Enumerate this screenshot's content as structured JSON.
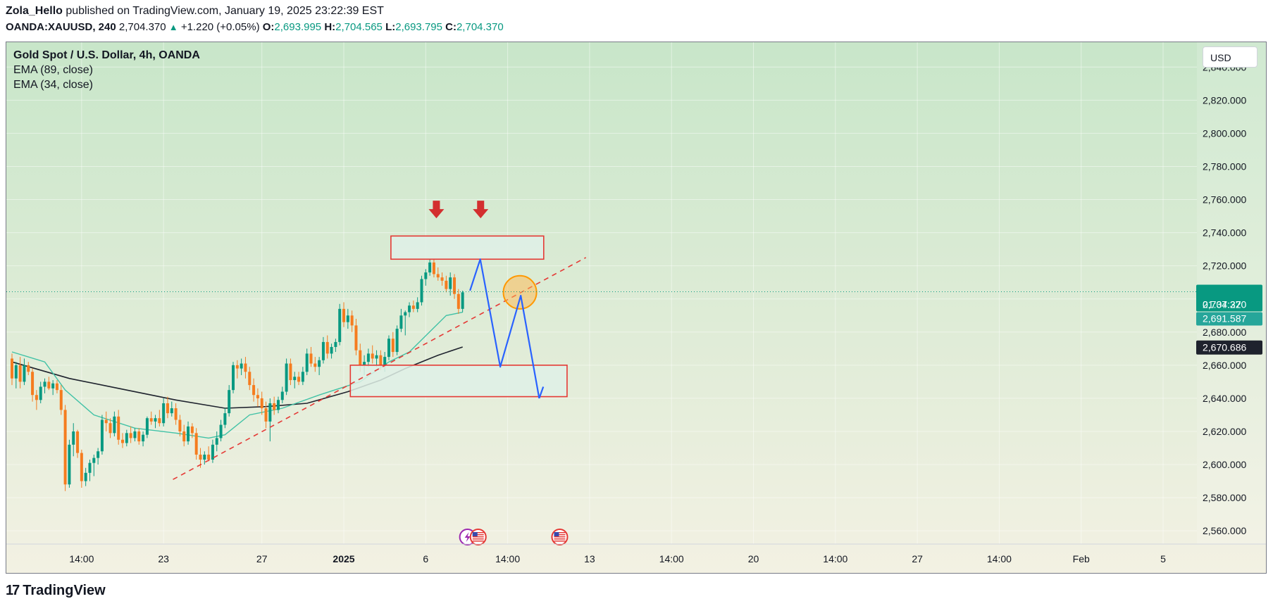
{
  "header": {
    "author": "Zola_Hello",
    "published_text": "published on TradingView.com, January 19, 2025 23:22:39 EST",
    "symbol": "OANDA:XAUUSD, 240",
    "last": "2,704.370",
    "change": "+1.220 (+0.05%)",
    "open_label": "O:",
    "open": "2,693.995",
    "high_label": "H:",
    "high": "2,704.565",
    "low_label": "L:",
    "low": "2,693.795",
    "close_label": "C:",
    "close": "2,704.370"
  },
  "legend": {
    "title": "Gold Spot / U.S. Dollar, 4h, OANDA",
    "ema1": "EMA (89, close)",
    "ema2": "EMA (34, close)"
  },
  "currency": "USD",
  "footer": {
    "logo_mark": "17",
    "logo_text": "TradingView"
  },
  "colors": {
    "up": "#089981",
    "down": "#f57c1f",
    "ema34": "#41c2a6",
    "ema89": "#1e222d",
    "trendline": "#e53935",
    "zone_border": "#e53935",
    "zone_fill": "#dff0e6",
    "projection": "#2962ff",
    "price_badge": "#089981",
    "ema_badge": "#1e222d",
    "marker_arrow": "#d32f2f",
    "circle": "#ff9800"
  },
  "chart_data": {
    "type": "candlestick",
    "symbol": "OANDA:XAUUSD",
    "timeframe": "4h",
    "yaxis": {
      "ticks": [
        2560,
        2580,
        2600,
        2620,
        2640,
        2660,
        2680,
        2700,
        2720,
        2740,
        2760,
        2780,
        2800,
        2820,
        2840
      ],
      "tick_labels": [
        "2,560.000",
        "2,580.000",
        "2,600.000",
        "2,620.000",
        "2,640.000",
        "2,660.000",
        "2,680.000",
        "2,700.000",
        "2,720.000",
        "2,740.000",
        "2,760.000",
        "2,780.000",
        "2,800.000",
        "2,820.000",
        "2,840.000"
      ],
      "range": [
        2552,
        2855
      ]
    },
    "xaxis": {
      "labels": [
        {
          "bar": 17,
          "text": "14:00"
        },
        {
          "bar": 37,
          "text": "23"
        },
        {
          "bar": 61,
          "text": "27"
        },
        {
          "bar": 81,
          "text": "2025",
          "bold": true
        },
        {
          "bar": 101,
          "text": "6"
        },
        {
          "bar": 121,
          "text": "14:00"
        },
        {
          "bar": 141,
          "text": "13"
        },
        {
          "bar": 161,
          "text": "14:00"
        },
        {
          "bar": 181,
          "text": "20"
        },
        {
          "bar": 201,
          "text": "14:00"
        },
        {
          "bar": 221,
          "text": "27"
        },
        {
          "bar": 241,
          "text": "14:00"
        },
        {
          "bar": 261,
          "text": "Feb"
        },
        {
          "bar": 281,
          "text": "5"
        }
      ]
    },
    "price_badges": [
      {
        "value": 2704.37,
        "text": "2,704.370",
        "kind": "last"
      },
      {
        "text": "01:37:22",
        "kind": "countdown"
      },
      {
        "value": 2691.587,
        "text": "2,691.587",
        "kind": "ema34"
      },
      {
        "value": 2670.686,
        "text": "2,670.686",
        "kind": "ema89"
      }
    ],
    "candles": [
      {
        "o": 2664,
        "h": 2667,
        "l": 2648,
        "c": 2652
      },
      {
        "o": 2652,
        "h": 2662,
        "l": 2646,
        "c": 2660
      },
      {
        "o": 2660,
        "h": 2665,
        "l": 2646,
        "c": 2650
      },
      {
        "o": 2650,
        "h": 2664,
        "l": 2648,
        "c": 2660
      },
      {
        "o": 2660,
        "h": 2662,
        "l": 2654,
        "c": 2656
      },
      {
        "o": 2656,
        "h": 2658,
        "l": 2638,
        "c": 2642
      },
      {
        "o": 2642,
        "h": 2645,
        "l": 2633,
        "c": 2639
      },
      {
        "o": 2639,
        "h": 2650,
        "l": 2637,
        "c": 2647
      },
      {
        "o": 2647,
        "h": 2652,
        "l": 2643,
        "c": 2650
      },
      {
        "o": 2650,
        "h": 2653,
        "l": 2645,
        "c": 2646
      },
      {
        "o": 2646,
        "h": 2651,
        "l": 2642,
        "c": 2649
      },
      {
        "o": 2649,
        "h": 2651,
        "l": 2643,
        "c": 2645
      },
      {
        "o": 2645,
        "h": 2648,
        "l": 2630,
        "c": 2633
      },
      {
        "o": 2633,
        "h": 2636,
        "l": 2584,
        "c": 2588
      },
      {
        "o": 2588,
        "h": 2615,
        "l": 2586,
        "c": 2612
      },
      {
        "o": 2612,
        "h": 2625,
        "l": 2605,
        "c": 2620
      },
      {
        "o": 2620,
        "h": 2621,
        "l": 2604,
        "c": 2607
      },
      {
        "o": 2607,
        "h": 2609,
        "l": 2586,
        "c": 2590
      },
      {
        "o": 2590,
        "h": 2598,
        "l": 2587,
        "c": 2595
      },
      {
        "o": 2595,
        "h": 2603,
        "l": 2590,
        "c": 2601
      },
      {
        "o": 2601,
        "h": 2606,
        "l": 2593,
        "c": 2604
      },
      {
        "o": 2604,
        "h": 2610,
        "l": 2600,
        "c": 2608
      },
      {
        "o": 2608,
        "h": 2630,
        "l": 2606,
        "c": 2627
      },
      {
        "o": 2627,
        "h": 2632,
        "l": 2620,
        "c": 2625
      },
      {
        "o": 2625,
        "h": 2628,
        "l": 2616,
        "c": 2619
      },
      {
        "o": 2619,
        "h": 2632,
        "l": 2617,
        "c": 2629
      },
      {
        "o": 2629,
        "h": 2633,
        "l": 2612,
        "c": 2615
      },
      {
        "o": 2615,
        "h": 2619,
        "l": 2610,
        "c": 2613
      },
      {
        "o": 2613,
        "h": 2621,
        "l": 2611,
        "c": 2619
      },
      {
        "o": 2619,
        "h": 2623,
        "l": 2613,
        "c": 2616
      },
      {
        "o": 2616,
        "h": 2622,
        "l": 2614,
        "c": 2620
      },
      {
        "o": 2620,
        "h": 2622,
        "l": 2612,
        "c": 2614
      },
      {
        "o": 2614,
        "h": 2620,
        "l": 2611,
        "c": 2618
      },
      {
        "o": 2618,
        "h": 2629,
        "l": 2616,
        "c": 2628
      },
      {
        "o": 2628,
        "h": 2632,
        "l": 2624,
        "c": 2626
      },
      {
        "o": 2626,
        "h": 2630,
        "l": 2622,
        "c": 2628
      },
      {
        "o": 2628,
        "h": 2633,
        "l": 2623,
        "c": 2625
      },
      {
        "o": 2625,
        "h": 2640,
        "l": 2623,
        "c": 2637
      },
      {
        "o": 2637,
        "h": 2641,
        "l": 2628,
        "c": 2631
      },
      {
        "o": 2631,
        "h": 2638,
        "l": 2629,
        "c": 2634
      },
      {
        "o": 2634,
        "h": 2637,
        "l": 2624,
        "c": 2627
      },
      {
        "o": 2627,
        "h": 2630,
        "l": 2617,
        "c": 2620
      },
      {
        "o": 2620,
        "h": 2624,
        "l": 2611,
        "c": 2614
      },
      {
        "o": 2614,
        "h": 2626,
        "l": 2612,
        "c": 2623
      },
      {
        "o": 2623,
        "h": 2625,
        "l": 2616,
        "c": 2619
      },
      {
        "o": 2619,
        "h": 2622,
        "l": 2603,
        "c": 2606
      },
      {
        "o": 2606,
        "h": 2610,
        "l": 2598,
        "c": 2603
      },
      {
        "o": 2603,
        "h": 2608,
        "l": 2600,
        "c": 2606
      },
      {
        "o": 2606,
        "h": 2611,
        "l": 2602,
        "c": 2603
      },
      {
        "o": 2603,
        "h": 2615,
        "l": 2601,
        "c": 2612
      },
      {
        "o": 2612,
        "h": 2620,
        "l": 2608,
        "c": 2616
      },
      {
        "o": 2616,
        "h": 2627,
        "l": 2614,
        "c": 2624
      },
      {
        "o": 2624,
        "h": 2634,
        "l": 2622,
        "c": 2631
      },
      {
        "o": 2631,
        "h": 2648,
        "l": 2629,
        "c": 2645
      },
      {
        "o": 2645,
        "h": 2662,
        "l": 2643,
        "c": 2660
      },
      {
        "o": 2660,
        "h": 2663,
        "l": 2652,
        "c": 2658
      },
      {
        "o": 2658,
        "h": 2664,
        "l": 2654,
        "c": 2661
      },
      {
        "o": 2661,
        "h": 2665,
        "l": 2652,
        "c": 2656
      },
      {
        "o": 2656,
        "h": 2659,
        "l": 2645,
        "c": 2648
      },
      {
        "o": 2648,
        "h": 2652,
        "l": 2638,
        "c": 2642
      },
      {
        "o": 2642,
        "h": 2646,
        "l": 2635,
        "c": 2640
      },
      {
        "o": 2640,
        "h": 2644,
        "l": 2630,
        "c": 2634
      },
      {
        "o": 2634,
        "h": 2638,
        "l": 2622,
        "c": 2626
      },
      {
        "o": 2626,
        "h": 2640,
        "l": 2614,
        "c": 2637
      },
      {
        "o": 2637,
        "h": 2641,
        "l": 2630,
        "c": 2633
      },
      {
        "o": 2633,
        "h": 2641,
        "l": 2631,
        "c": 2639
      },
      {
        "o": 2639,
        "h": 2647,
        "l": 2637,
        "c": 2644
      },
      {
        "o": 2644,
        "h": 2664,
        "l": 2642,
        "c": 2661
      },
      {
        "o": 2661,
        "h": 2664,
        "l": 2648,
        "c": 2651
      },
      {
        "o": 2651,
        "h": 2656,
        "l": 2646,
        "c": 2653
      },
      {
        "o": 2653,
        "h": 2656,
        "l": 2648,
        "c": 2650
      },
      {
        "o": 2650,
        "h": 2659,
        "l": 2648,
        "c": 2656
      },
      {
        "o": 2656,
        "h": 2670,
        "l": 2654,
        "c": 2667
      },
      {
        "o": 2667,
        "h": 2671,
        "l": 2659,
        "c": 2661
      },
      {
        "o": 2661,
        "h": 2665,
        "l": 2656,
        "c": 2659
      },
      {
        "o": 2659,
        "h": 2665,
        "l": 2654,
        "c": 2663
      },
      {
        "o": 2663,
        "h": 2677,
        "l": 2661,
        "c": 2674
      },
      {
        "o": 2674,
        "h": 2678,
        "l": 2664,
        "c": 2667
      },
      {
        "o": 2667,
        "h": 2673,
        "l": 2664,
        "c": 2671
      },
      {
        "o": 2671,
        "h": 2676,
        "l": 2668,
        "c": 2674
      },
      {
        "o": 2674,
        "h": 2697,
        "l": 2672,
        "c": 2694
      },
      {
        "o": 2694,
        "h": 2698,
        "l": 2683,
        "c": 2686
      },
      {
        "o": 2686,
        "h": 2694,
        "l": 2682,
        "c": 2690
      },
      {
        "o": 2690,
        "h": 2693,
        "l": 2680,
        "c": 2684
      },
      {
        "o": 2684,
        "h": 2688,
        "l": 2666,
        "c": 2669
      },
      {
        "o": 2669,
        "h": 2673,
        "l": 2656,
        "c": 2660
      },
      {
        "o": 2660,
        "h": 2666,
        "l": 2654,
        "c": 2662
      },
      {
        "o": 2662,
        "h": 2670,
        "l": 2659,
        "c": 2667
      },
      {
        "o": 2667,
        "h": 2672,
        "l": 2661,
        "c": 2664
      },
      {
        "o": 2664,
        "h": 2669,
        "l": 2659,
        "c": 2666
      },
      {
        "o": 2666,
        "h": 2669,
        "l": 2657,
        "c": 2660
      },
      {
        "o": 2660,
        "h": 2668,
        "l": 2656,
        "c": 2665
      },
      {
        "o": 2665,
        "h": 2678,
        "l": 2663,
        "c": 2676
      },
      {
        "o": 2676,
        "h": 2680,
        "l": 2665,
        "c": 2668
      },
      {
        "o": 2668,
        "h": 2684,
        "l": 2666,
        "c": 2682
      },
      {
        "o": 2682,
        "h": 2694,
        "l": 2680,
        "c": 2690
      },
      {
        "o": 2690,
        "h": 2693,
        "l": 2678,
        "c": 2692
      },
      {
        "o": 2692,
        "h": 2698,
        "l": 2689,
        "c": 2696
      },
      {
        "o": 2696,
        "h": 2699,
        "l": 2692,
        "c": 2694
      },
      {
        "o": 2694,
        "h": 2701,
        "l": 2692,
        "c": 2698
      },
      {
        "o": 2698,
        "h": 2714,
        "l": 2696,
        "c": 2712
      },
      {
        "o": 2712,
        "h": 2718,
        "l": 2708,
        "c": 2716
      },
      {
        "o": 2716,
        "h": 2724,
        "l": 2714,
        "c": 2722
      },
      {
        "o": 2722,
        "h": 2724,
        "l": 2713,
        "c": 2715
      },
      {
        "o": 2715,
        "h": 2719,
        "l": 2711,
        "c": 2713
      },
      {
        "o": 2713,
        "h": 2716,
        "l": 2708,
        "c": 2711
      },
      {
        "o": 2711,
        "h": 2714,
        "l": 2704,
        "c": 2706
      },
      {
        "o": 2706,
        "h": 2716,
        "l": 2702,
        "c": 2713
      },
      {
        "o": 2713,
        "h": 2715,
        "l": 2700,
        "c": 2703
      },
      {
        "o": 2703,
        "h": 2706,
        "l": 2691,
        "c": 2694
      },
      {
        "o": 2694,
        "h": 2705,
        "l": 2692,
        "c": 2704
      }
    ],
    "ema34": [
      [
        0,
        2668
      ],
      [
        8,
        2662
      ],
      [
        13,
        2645
      ],
      [
        20,
        2630
      ],
      [
        30,
        2622
      ],
      [
        40,
        2619
      ],
      [
        48,
        2616
      ],
      [
        52,
        2618
      ],
      [
        58,
        2630
      ],
      [
        66,
        2634
      ],
      [
        75,
        2642
      ],
      [
        85,
        2650
      ],
      [
        92,
        2662
      ],
      [
        97,
        2668
      ],
      [
        106,
        2690
      ],
      [
        110,
        2692
      ]
    ],
    "ema89": [
      [
        0,
        2662
      ],
      [
        14,
        2652
      ],
      [
        26,
        2646
      ],
      [
        40,
        2639
      ],
      [
        52,
        2634
      ],
      [
        62,
        2635
      ],
      [
        72,
        2637
      ],
      [
        82,
        2644
      ],
      [
        90,
        2651
      ],
      [
        96,
        2658
      ],
      [
        104,
        2666
      ],
      [
        110,
        2671
      ]
    ],
    "drawings": {
      "trendline": {
        "start": [
          39.3,
          2591
        ],
        "end": [
          140.1,
          2725
        ]
      },
      "resistance_zone": {
        "x1": 92.5,
        "x2": 129.8,
        "top": 2738,
        "bottom": 2724
      },
      "support_zone": {
        "x1": 82.6,
        "x2": 135.5,
        "top": 2660,
        "bottom": 2641
      },
      "projection_path": [
        [
          111.8,
          2705
        ],
        [
          114.3,
          2724
        ],
        [
          119.2,
          2659
        ],
        [
          124.2,
          2702
        ],
        [
          128.7,
          2640
        ]
      ],
      "projection_arrowhead_tail": [
        129.7,
        2647
      ],
      "marker_arrows": [
        [
          103.6,
          2750
        ],
        [
          114.4,
          2750
        ]
      ],
      "circle": {
        "x": 124.0,
        "y": 2704,
        "radius_price": 10
      }
    },
    "event_icons": [
      {
        "bar": 111.2,
        "kind": "lightning"
      },
      {
        "bar": 113.8,
        "kind": "us-flag"
      },
      {
        "bar": 133.7,
        "kind": "us-flag"
      }
    ]
  }
}
